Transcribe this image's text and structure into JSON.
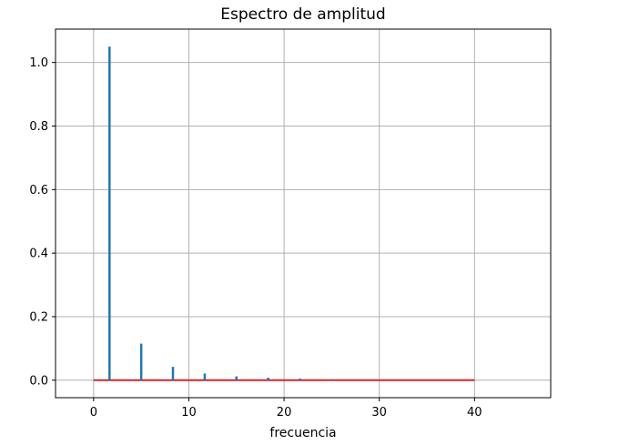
{
  "chart_data": {
    "type": "stem",
    "title": "Espectro de amplitud",
    "xlabel": "frecuencia",
    "ylabel": "",
    "xlim": [
      -4,
      48
    ],
    "ylim": [
      -0.055,
      1.105
    ],
    "xticks": [
      0,
      10,
      20,
      30,
      40
    ],
    "xtick_labels": [
      "0",
      "10",
      "20",
      "30",
      "40"
    ],
    "yticks": [
      0.0,
      0.2,
      0.4,
      0.6,
      0.8,
      1.0
    ],
    "ytick_labels": [
      "0.0",
      "0.2",
      "0.4",
      "0.6",
      "0.8",
      "1.0"
    ],
    "grid": true,
    "baseline": {
      "from": 0,
      "to": 40,
      "value": 0
    },
    "stems": {
      "x": [
        1.67,
        5.0,
        8.33,
        11.67,
        15.0,
        18.33,
        21.67,
        25.0
      ],
      "y": [
        1.05,
        0.115,
        0.042,
        0.021,
        0.012,
        0.008,
        0.005,
        0.003
      ]
    },
    "colors": {
      "stem": "#1f77b4",
      "baseline": "#d62728",
      "grid": "#b0b0b0"
    }
  }
}
